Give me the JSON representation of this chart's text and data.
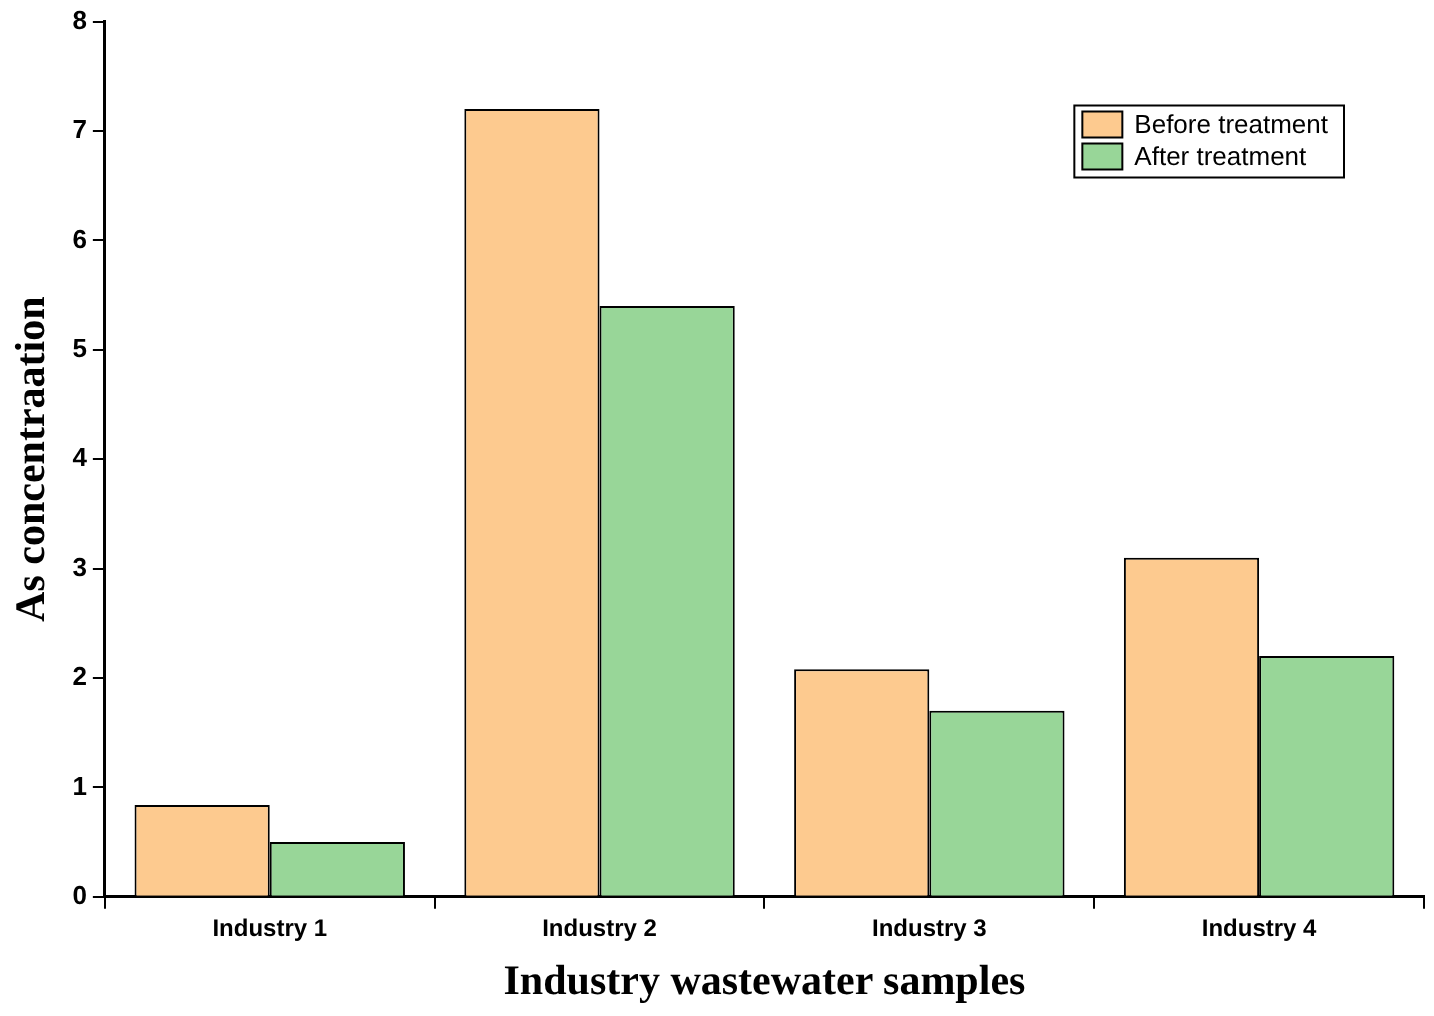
{
  "chart_data": {
    "type": "bar",
    "xlabel": "Industry wastewater samples",
    "ylabel": "As concentraation",
    "categories": [
      "Industry 1",
      "Industry 2",
      "Industry 3",
      "Industry 4"
    ],
    "series": [
      {
        "name": "Before treatment",
        "color": "#fdca8f",
        "values": [
          0.84,
          7.2,
          2.08,
          3.1
        ]
      },
      {
        "name": "After treatment",
        "color": "#98d698",
        "values": [
          0.5,
          5.4,
          1.7,
          2.2
        ]
      }
    ],
    "ylim": [
      0,
      8
    ],
    "yticks": [
      0,
      1,
      2,
      3,
      4,
      5,
      6,
      7,
      8
    ],
    "grid": false,
    "legend": "top right"
  }
}
